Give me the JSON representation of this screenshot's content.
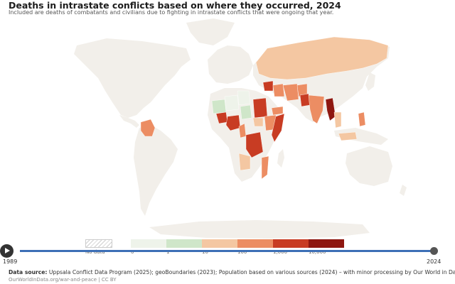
{
  "title": "Deaths in intrastate conflicts based on where they occurred, 2024",
  "subtitle": "Included are deaths of combatants and civilians due to fighting in intrastate conflicts that were ongoing that year.",
  "colors": {
    "land": "#f2efea",
    "no_data": "#e6e6e6",
    "bins": [
      "#eef3ea",
      "#cfe6c9",
      "#f4c7a2",
      "#ec8d63",
      "#c83c23",
      "#8e1710"
    ],
    "timeline": "#3d6fb6"
  },
  "legend": {
    "no_data_label": "No data",
    "bin_labels": [
      "0",
      "1",
      "10",
      "100",
      "1,000",
      "10,000"
    ]
  },
  "timeline": {
    "start_label": "1989",
    "end_label": "2024",
    "selected_year": 2024
  },
  "source": {
    "label": "Data source:",
    "text": "Uppsala Conflict Data Program (2025); geoBoundaries (2023); Population based on various sources (2024) – with minor processing by Our World in Data"
  },
  "footer": "OurWorldInData.org/war-and-peace | CC BY",
  "map_data": {
    "regions": [
      {
        "name": "Russia",
        "bin": 2
      },
      {
        "name": "Colombia",
        "bin": 3
      },
      {
        "name": "Mali",
        "bin": 1
      },
      {
        "name": "Niger",
        "bin": 0
      },
      {
        "name": "Libya",
        "bin": 0
      },
      {
        "name": "Chad",
        "bin": 1
      },
      {
        "name": "Burkina Faso",
        "bin": 4
      },
      {
        "name": "Nigeria",
        "bin": 4
      },
      {
        "name": "Cameroon",
        "bin": 3
      },
      {
        "name": "Sudan",
        "bin": 4
      },
      {
        "name": "Ethiopia",
        "bin": 3
      },
      {
        "name": "Somalia",
        "bin": 4
      },
      {
        "name": "South Sudan",
        "bin": 2
      },
      {
        "name": "DR Congo",
        "bin": 4
      },
      {
        "name": "Mozambique",
        "bin": 3
      },
      {
        "name": "Angola",
        "bin": 2
      },
      {
        "name": "Syria",
        "bin": 4
      },
      {
        "name": "Iraq",
        "bin": 3
      },
      {
        "name": "Iran",
        "bin": 3
      },
      {
        "name": "Afghanistan",
        "bin": 3
      },
      {
        "name": "Pakistan",
        "bin": 4
      },
      {
        "name": "India",
        "bin": 3
      },
      {
        "name": "Myanmar",
        "bin": 5
      },
      {
        "name": "Thailand",
        "bin": 2
      },
      {
        "name": "Philippines",
        "bin": 3
      },
      {
        "name": "Indonesia",
        "bin": 2
      },
      {
        "name": "Yemen",
        "bin": 3
      }
    ]
  }
}
